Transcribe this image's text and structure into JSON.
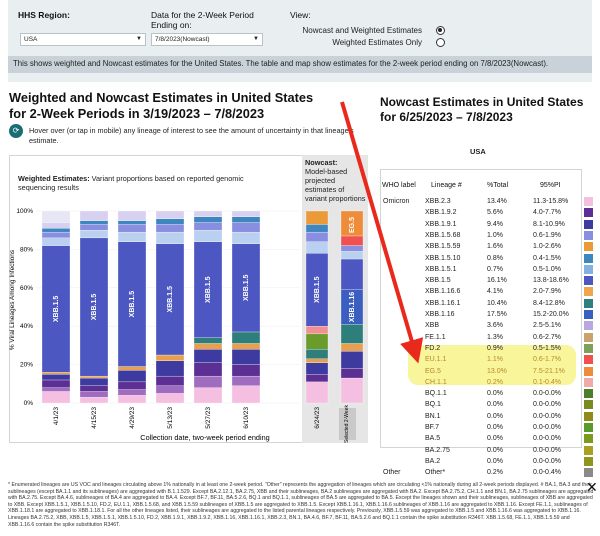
{
  "filters": {
    "region_label": "HHS Region:",
    "region_value": "USA",
    "period_label_1": "Data for the 2-Week Period",
    "period_label_2": "Ending on:",
    "period_value": "7/8/2023(Nowcast)",
    "view_label": "View:",
    "view_options": [
      "Nowcast and Weighted Estimates",
      "Weighted Estimates Only"
    ],
    "notice": "This shows weighted and Nowcast estimates for the United States. The table and map show estimates for the 2-week period ending on 7/8/2023(Nowcast)."
  },
  "left": {
    "title": "Weighted and Nowcast Estimates in United States for 2-Week Periods in 3/19/2023 – 7/8/2023",
    "hover_text": "Hover over (or tap in mobile) any lineage of interest to see the amount of uncertainty in that lineage's estimate.",
    "weighted_bold": "Weighted Estimates:",
    "weighted_rest": " Variant proportions based on reported genomic sequencing results",
    "nowcast_bold": "Nowcast:",
    "nowcast_rest": "Model-based projected estimates of variant proportions",
    "ylabel": "% Viral Lineages Among Infections",
    "xlabel": "Collection date, two-week period ending",
    "selected_label": "Selected 2-Week"
  },
  "chart_data": {
    "type": "bar",
    "stacked": true,
    "ylim": [
      0,
      100
    ],
    "yticks": [
      "0%",
      "20%",
      "40%",
      "60%",
      "80%",
      "100%"
    ],
    "categories": [
      "4/1/23",
      "4/15/23",
      "4/29/23",
      "5/13/23",
      "5/27/23",
      "6/10/23",
      "6/24/23",
      "7/8/23"
    ],
    "segment_colors": [
      "#f4bfe0",
      "#a06cc0",
      "#5b2f93",
      "#3d3aa0",
      "#e8a04e",
      "#3e86c0",
      "#2e7f7b",
      "#b9d0f0",
      "#4c57c2",
      "#8a8ee0",
      "#ea9a38",
      "#f09090",
      "#6a9c2c"
    ],
    "bars": [
      {
        "label": "4/1/23",
        "segments": [
          [
            0,
            8
          ],
          [
            0,
            5
          ],
          [
            0,
            8
          ],
          [
            0,
            68
          ],
          [
            0,
            11
          ]
        ],
        "major_label": "XBB.1.5"
      },
      {
        "label": "4/15/23",
        "segments": [],
        "major_label": "XBB.1.5"
      },
      {
        "label": "4/29/23",
        "segments": [],
        "major_label": "XBB.1.5"
      },
      {
        "label": "5/13/23",
        "segments": [],
        "major_label": "XBB.1.5"
      },
      {
        "label": "5/27/23",
        "segments": [],
        "major_label": "XBB.1.5"
      },
      {
        "label": "6/10/23",
        "segments": [],
        "major_label": "XBB.1.5"
      },
      {
        "label": "6/24/23",
        "segments": [],
        "major_label": "XBB.1.5"
      },
      {
        "label": "7/8/23",
        "segments": [],
        "major_label": "XBB.1.16",
        "top_label": "EG.5"
      }
    ]
  },
  "right": {
    "title": "Nowcast Estimates in United States for 6/25/2023 – 7/8/2023",
    "region": "USA",
    "headers": [
      "WHO label",
      "Lineage #",
      "%Total",
      "95%PI"
    ],
    "rows": [
      {
        "who": "Omicron",
        "lineage": "XBB.2.3",
        "pct": "13.4%",
        "pi": "11.3-15.8%",
        "color": "#f4bfe0"
      },
      {
        "who": "",
        "lineage": "XBB.1.9.2",
        "pct": "5.6%",
        "pi": "4.0-7.7%",
        "color": "#5b2f93"
      },
      {
        "who": "",
        "lineage": "XBB.1.9.1",
        "pct": "9.4%",
        "pi": "8.1-10.9%",
        "color": "#3d3aa0"
      },
      {
        "who": "",
        "lineage": "XBB.1.5.68",
        "pct": "1.0%",
        "pi": "0.6-1.9%",
        "color": "#8a8ee0"
      },
      {
        "who": "",
        "lineage": "XBB.1.5.59",
        "pct": "1.6%",
        "pi": "1.0-2.6%",
        "color": "#ea9a38"
      },
      {
        "who": "",
        "lineage": "XBB.1.5.10",
        "pct": "0.8%",
        "pi": "0.4-1.5%",
        "color": "#3e86c0"
      },
      {
        "who": "",
        "lineage": "XBB.1.5.1",
        "pct": "0.7%",
        "pi": "0.5-1.0%",
        "color": "#86b0e0"
      },
      {
        "who": "",
        "lineage": "XBB.1.5",
        "pct": "16.1%",
        "pi": "13.8-18.6%",
        "color": "#4c57c2"
      },
      {
        "who": "",
        "lineage": "XBB.1.16.6",
        "pct": "4.1%",
        "pi": "2.0-7.9%",
        "color": "#f0a64e"
      },
      {
        "who": "",
        "lineage": "XBB.1.16.1",
        "pct": "10.4%",
        "pi": "8.4-12.8%",
        "color": "#2f7f7f"
      },
      {
        "who": "",
        "lineage": "XBB.1.16",
        "pct": "17.5%",
        "pi": "15.2-20.0%",
        "color": "#3b5fc0"
      },
      {
        "who": "",
        "lineage": "XBB",
        "pct": "3.6%",
        "pi": "2.5-5.1%",
        "color": "#b7a8e0"
      },
      {
        "who": "",
        "lineage": "FE.1.1",
        "pct": "1.3%",
        "pi": "0.6-2.7%",
        "color": "#c9a36b"
      },
      {
        "who": "",
        "lineage": "FD.2",
        "pct": "0.9%",
        "pi": "0.5-1.5%",
        "color": "#7fa05a"
      },
      {
        "who": "",
        "lineage": "EU.1.1",
        "pct": "1.1%",
        "pi": "0.6-1.7%",
        "color": "#f05050",
        "dim": true
      },
      {
        "who": "",
        "lineage": "EG.5",
        "pct": "13.0%",
        "pi": "7.5-21.1%",
        "color": "#ee8c3a",
        "dim": true
      },
      {
        "who": "",
        "lineage": "CH.1.1",
        "pct": "0.2%",
        "pi": "0.1-0.4%",
        "color": "#f2a9a9",
        "dim": true
      },
      {
        "who": "",
        "lineage": "BQ.1.1",
        "pct": "0.0%",
        "pi": "0.0-0.0%",
        "color": "#4b7f2b"
      },
      {
        "who": "",
        "lineage": "BQ.1",
        "pct": "0.0%",
        "pi": "0.0-0.0%",
        "color": "#7a8a1e"
      },
      {
        "who": "",
        "lineage": "BN.1",
        "pct": "0.0%",
        "pi": "0.0-0.0%",
        "color": "#8f8a1a"
      },
      {
        "who": "",
        "lineage": "BF.7",
        "pct": "0.0%",
        "pi": "0.0-0.0%",
        "color": "#5a9a2a"
      },
      {
        "who": "",
        "lineage": "BA.5",
        "pct": "0.0%",
        "pi": "0.0-0.0%",
        "color": "#7e9a1c"
      },
      {
        "who": "",
        "lineage": "BA.2.75",
        "pct": "0.0%",
        "pi": "0.0-0.0%",
        "color": "#a8a020"
      },
      {
        "who": "",
        "lineage": "BA.2",
        "pct": "0.0%",
        "pi": "0.0-0.0%",
        "color": "#8f961e"
      },
      {
        "who": "Other",
        "lineage": "Other*",
        "pct": "0.2%",
        "pi": "0.0-0.4%",
        "color": "#8a8a8a"
      }
    ]
  },
  "footnote": "* Enumerated lineages are US VOC and lineages circulating above 1% nationally in at least one 2-week period. \"Other\" represents the aggregation of lineages which are circulating <1% nationally during all 2-week periods displayed. # BA.1, BA.3 and their sublineages (except BA.1.1 and its sublineages) are aggregated with B.1.1.529. Except BA.2.12.1, BA.2.75, XBB and their sublineages, BA.2 sublineages are aggregated with BA.2. Except BA.2.75.2, CH.1.1 and BN.1, BA.2.75 sublineages are aggregated with BA.2.75. Except BA.4.6, sublineages of BA.4 are aggregated to BA.4. Except BF.7, BF.11, BA.5.2.6, BQ.1 and BQ.1.1, sublineages of BA.5 are aggregated to BA.5. Except the lineages shown and their sublineages, sublineages of XBB are aggregated to XBB. Except XBB.1.5.1, XBB.1.5.10, FD.2, EU.1.1, XBB.1.5.68, and XBB.1.5.59 sublineages of XBB.1.5 are aggregated to XBB.1.5. Except XBB.1.16.1, XBB.1.16.6 sublineages of XBB.1.16 are aggregated to XBB.1.16. Except FE.1.1, sublineages of XBB.1.18.1 are aggregated to XBB.1.18.1. For all the other lineages listed, their sublineages are aggregated to the listed parental lineages respectively. Previously, XBB.1.5.59 was aggregated to XBB.1.5 and XBB.1.16.6 was aggregated to XBB.1.16. Lineages BA.2.75.2, XBB, XBB.1.5, XBB.1.5.1, XBB.1.5.10, FD.2, XBB.1.9.1, XBB.1.9.2, XBB.1.16, XBB.1.16.1, XBB.2.3, BN.1, BA.4.6, BF.7, BF.11, BA.5.2.6 and BQ.1.1 contain the spike substitution R346T. XBB.1.5.68, FE.1.1, XBB.1.5.59 and XBB.1.16.6 contain the spike substitution R346T."
}
